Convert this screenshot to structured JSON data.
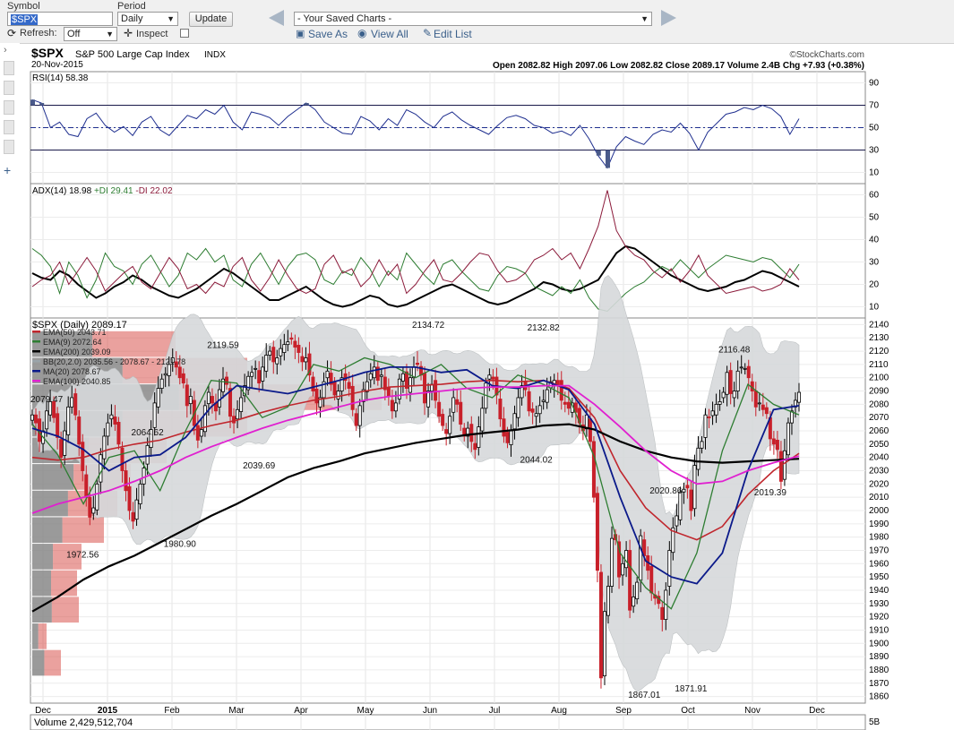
{
  "toolbar": {
    "symbol_label": "Symbol",
    "symbol_value": "$SPX",
    "period_label": "Period",
    "period_value": "Daily",
    "update_label": "Update",
    "saved_charts": "- Your Saved Charts -",
    "refresh_label": "Refresh:",
    "refresh_value": "Off",
    "inspect_label": "Inspect",
    "save_as": "Save As",
    "view_all": "View All",
    "edit_list": "Edit List"
  },
  "header": {
    "title": "$SPX",
    "subtitle": "S&P 500 Large Cap Index",
    "exchange": "INDX",
    "date": "20-Nov-2015",
    "brand": "©StockCharts.com",
    "quote": "Open 2082.82  High 2097.06  Low 2082.82  Close 2089.17  Volume 2.4B  Chg +7.93 (+0.38%)"
  },
  "colors": {
    "rsi_line": "#1f2f8f",
    "plus_di": "#2e7d32",
    "minus_di": "#8b1a3a",
    "adx": "#000000",
    "ema50": "#c0262d",
    "ema9": "#2e7d32",
    "ema200": "#000000",
    "ma20": "#0b1a8a",
    "ema100": "#e020d0",
    "up_candle": "#000000",
    "down_candle": "#c8202a",
    "bb_fill": "#d6d9db"
  },
  "chart_data": [
    {
      "type": "line",
      "title": "RSI(14) 58.38",
      "ylim": [
        0,
        100
      ],
      "yticks": [
        10,
        30,
        50,
        70,
        90
      ],
      "reference_lines": [
        30,
        50,
        70
      ],
      "series": [
        {
          "name": "RSI(14) 58.38",
          "values": [
            75,
            72,
            50,
            55,
            44,
            42,
            58,
            63,
            52,
            46,
            51,
            43,
            55,
            60,
            48,
            43,
            52,
            61,
            58,
            66,
            62,
            70,
            55,
            48,
            64,
            62,
            59,
            52,
            60,
            66,
            72,
            66,
            55,
            50,
            45,
            44,
            60,
            56,
            48,
            58,
            52,
            66,
            62,
            55,
            50,
            60,
            64,
            57,
            52,
            48,
            44,
            52,
            59,
            61,
            58,
            52,
            50,
            45,
            47,
            43,
            52,
            40,
            25,
            14,
            33,
            42,
            38,
            35,
            44,
            48,
            46,
            54,
            45,
            30,
            46,
            54,
            62,
            64,
            68,
            66,
            70,
            67,
            60,
            44,
            58
          ]
        }
      ]
    },
    {
      "type": "line",
      "title": "ADX(14) 18.98 +DI 29.41 -DI 22.02",
      "ylim": [
        5,
        65
      ],
      "yticks": [
        10,
        20,
        30,
        40,
        50,
        60
      ],
      "series": [
        {
          "name": "ADX(14) 18.98",
          "values": [
            25,
            23,
            22,
            26,
            24,
            20,
            17,
            14,
            16,
            19,
            21,
            24,
            22,
            19,
            17,
            15,
            14,
            16,
            18,
            21,
            24,
            27,
            25,
            22,
            19,
            16,
            13,
            13,
            15,
            17,
            19,
            16,
            13,
            11,
            10,
            11,
            13,
            15,
            14,
            11,
            10,
            11,
            13,
            15,
            17,
            19,
            20,
            18,
            16,
            14,
            12,
            11,
            12,
            14,
            16,
            18,
            21,
            20,
            18,
            17,
            18,
            20,
            22,
            28,
            34,
            37,
            36,
            33,
            30,
            27,
            24,
            22,
            20,
            18,
            17,
            18,
            19,
            21,
            22,
            24,
            26,
            25,
            23,
            21,
            19
          ]
        },
        {
          "name": "+DI 29.41",
          "values": [
            36,
            33,
            28,
            16,
            30,
            24,
            14,
            22,
            34,
            28,
            26,
            20,
            29,
            33,
            26,
            19,
            24,
            34,
            31,
            36,
            30,
            33,
            22,
            19,
            29,
            34,
            27,
            20,
            28,
            33,
            34,
            31,
            22,
            20,
            26,
            24,
            32,
            27,
            19,
            26,
            22,
            34,
            29,
            24,
            20,
            29,
            31,
            26,
            22,
            18,
            17,
            24,
            28,
            27,
            25,
            19,
            17,
            15,
            19,
            16,
            22,
            14,
            9,
            8,
            12,
            16,
            19,
            21,
            25,
            28,
            26,
            31,
            27,
            23,
            27,
            30,
            33,
            32,
            31,
            30,
            32,
            31,
            27,
            23,
            29
          ]
        },
        {
          "name": "-DI 22.02",
          "values": [
            19,
            22,
            24,
            30,
            20,
            26,
            32,
            26,
            17,
            21,
            25,
            28,
            21,
            18,
            25,
            32,
            27,
            18,
            20,
            16,
            21,
            19,
            28,
            32,
            22,
            17,
            23,
            31,
            24,
            18,
            16,
            18,
            29,
            33,
            25,
            27,
            19,
            23,
            31,
            24,
            29,
            16,
            20,
            26,
            31,
            22,
            21,
            25,
            30,
            34,
            33,
            26,
            21,
            22,
            25,
            31,
            33,
            36,
            31,
            34,
            27,
            36,
            46,
            62,
            44,
            37,
            33,
            31,
            26,
            23,
            27,
            21,
            26,
            33,
            24,
            20,
            16,
            17,
            18,
            19,
            17,
            18,
            20,
            27,
            22
          ]
        }
      ]
    },
    {
      "type": "line",
      "title": "$SPX (Daily) 2089.17",
      "ylim": [
        1855,
        2145
      ],
      "yticks": [
        1860,
        1870,
        1880,
        1890,
        1900,
        1910,
        1920,
        1930,
        1940,
        1950,
        1960,
        1970,
        1980,
        1990,
        2000,
        2010,
        2020,
        2030,
        2040,
        2050,
        2060,
        2070,
        2080,
        2090,
        2100,
        2110,
        2120,
        2130,
        2140
      ],
      "xlabels": [
        "Dec",
        "2015",
        "Feb",
        "Mar",
        "Apr",
        "May",
        "Jun",
        "Jul",
        "Aug",
        "Sep",
        "Oct",
        "Nov",
        "Dec"
      ],
      "legend": [
        "EMA(50) 2043.71",
        "EMA(9) 2072.64",
        "EMA(200) 2039.09",
        "BB(20,2.0) 2035.56 - 2078.67 - 2121.78",
        "MA(20) 2078.67",
        "EMA(100) 2040.85"
      ],
      "annotations": [
        {
          "label": "2079.47",
          "x": 2,
          "y": 2079
        },
        {
          "label": "1972.56",
          "x": 7,
          "y": 1972.56
        },
        {
          "label": "2064.62",
          "x": 16,
          "y": 2064.62
        },
        {
          "label": "1980.90",
          "x": 20,
          "y": 1980.9
        },
        {
          "label": "2119.59",
          "x": 26,
          "y": 2119.59
        },
        {
          "label": "2039.69",
          "x": 31,
          "y": 2039.69
        },
        {
          "label": "2134.72",
          "x": 54,
          "y": 2134.72
        },
        {
          "label": "2044.02",
          "x": 69,
          "y": 2044.02
        },
        {
          "label": "2132.82",
          "x": 70,
          "y": 2132.82
        },
        {
          "label": "1867.01",
          "x": 84,
          "y": 1867.01
        },
        {
          "label": "2020.86",
          "x": 87,
          "y": 2020.86
        },
        {
          "label": "1871.91",
          "x": 90,
          "y": 1871.91
        },
        {
          "label": "2116.48",
          "x": 96,
          "y": 2116.48
        },
        {
          "label": "2019.39",
          "x": 101,
          "y": 2019.39
        }
      ],
      "close": [
        2072,
        2066,
        2052,
        2060,
        2075,
        2082,
        2070,
        2055,
        2040,
        2060,
        2078,
        2085,
        2072,
        2050,
        2030,
        2010,
        1995,
        2002,
        2020,
        2042,
        2056,
        2066,
        2072,
        2065,
        2050,
        2030,
        2015,
        2000,
        1992,
        2008,
        2020,
        2032,
        2049,
        2061,
        2081,
        2092,
        2099,
        2103,
        2110,
        2115,
        2108,
        2100,
        2096,
        2079,
        2086,
        2064,
        2053,
        2061,
        2079,
        2089,
        2081,
        2075,
        2091,
        2099,
        2095,
        2071,
        2066,
        2076,
        2085,
        2094,
        2101,
        2104,
        2107,
        2096,
        2108,
        2117,
        2120,
        2112,
        2115,
        2122,
        2125,
        2127,
        2129,
        2123,
        2119,
        2112,
        2115,
        2102,
        2090,
        2081,
        2085,
        2097,
        2105,
        2095,
        2087,
        2090,
        2100,
        2098,
        2092,
        2076,
        2064,
        2079,
        2091,
        2097,
        2103,
        2108,
        2098,
        2102,
        2091,
        2086,
        2075,
        2081,
        2099,
        2103,
        2092,
        2100,
        2108,
        2110,
        2102,
        2081,
        2090,
        2095,
        2083,
        2071,
        2064,
        2058,
        2071,
        2085,
        2080,
        2065,
        2056,
        2062,
        2052,
        2046,
        2063,
        2077,
        2096,
        2102,
        2099,
        2087,
        2069,
        2056,
        2051,
        2060,
        2073,
        2085,
        2094,
        2091,
        2075,
        2074,
        2073,
        2079,
        2083,
        2091,
        2097,
        2098,
        2095,
        2083,
        2080,
        2077,
        2081,
        2074,
        2066,
        2060,
        2072,
        2052,
        2010,
        1955,
        1874,
        1924,
        1943,
        1979,
        1978,
        1950,
        1960,
        1970,
        1925,
        1935,
        1946,
        1981,
        1966,
        1955,
        1938,
        1934,
        1930,
        1918,
        1940,
        1970,
        1987,
        1996,
        2014,
        2016,
        2017,
        2000,
        2034,
        2047,
        2052,
        2072,
        2070,
        2075,
        2080,
        2082,
        2089,
        2104,
        2088,
        2090,
        2105,
        2108,
        2107,
        2100,
        2090,
        2078,
        2081,
        2076,
        2073,
        2054,
        2050,
        2046,
        2022,
        2045,
        2066,
        2075,
        2083,
        2089
      ],
      "series": [
        {
          "name": "EMA(50) 2043.71",
          "values": [
            2040,
            2038,
            2040,
            2046,
            2050,
            2053,
            2059,
            2064,
            2068,
            2074,
            2079,
            2083,
            2086,
            2090,
            2093,
            2094,
            2095,
            2097,
            2098,
            2097,
            2098,
            2092,
            2070,
            2030,
            2002,
            1985,
            1978,
            1988,
            2012,
            2030,
            2043
          ]
        },
        {
          "name": "EMA(9) 2072.64",
          "values": [
            2065,
            2042,
            2005,
            2040,
            2045,
            2015,
            2060,
            2098,
            2096,
            2070,
            2078,
            2110,
            2105,
            2115,
            2110,
            2100,
            2110,
            2092,
            2085,
            2102,
            2095,
            2085,
            2040,
            1968,
            1942,
            1926,
            1968,
            2045,
            2095,
            2080,
            2072
          ]
        },
        {
          "name": "EMA(200) 2039.09",
          "values": [
            1924,
            1935,
            1948,
            1958,
            1966,
            1976,
            1986,
            1996,
            2005,
            2015,
            2025,
            2032,
            2037,
            2043,
            2047,
            2051,
            2054,
            2057,
            2059,
            2061,
            2064,
            2065,
            2061,
            2052,
            2045,
            2040,
            2037,
            2036,
            2037,
            2038,
            2039
          ]
        },
        {
          "name": "MA(20) 2078.67",
          "values": [
            2062,
            2056,
            2046,
            2030,
            2040,
            2042,
            2055,
            2078,
            2094,
            2091,
            2088,
            2093,
            2098,
            2104,
            2108,
            2108,
            2104,
            2106,
            2094,
            2092,
            2098,
            2091,
            2065,
            2010,
            1962,
            1950,
            1945,
            1968,
            2030,
            2076,
            2079
          ]
        },
        {
          "name": "EMA(100) 2040.85",
          "values": [
            1998,
            2005,
            2010,
            2015,
            2022,
            2030,
            2040,
            2048,
            2055,
            2062,
            2068,
            2073,
            2078,
            2083,
            2086,
            2088,
            2090,
            2092,
            2093,
            2093,
            2094,
            2094,
            2080,
            2063,
            2045,
            2030,
            2020,
            2022,
            2030,
            2036,
            2041
          ]
        }
      ]
    },
    {
      "type": "bar",
      "title": "Volume 2,429,512,704",
      "yticks": [
        "5B"
      ]
    }
  ]
}
